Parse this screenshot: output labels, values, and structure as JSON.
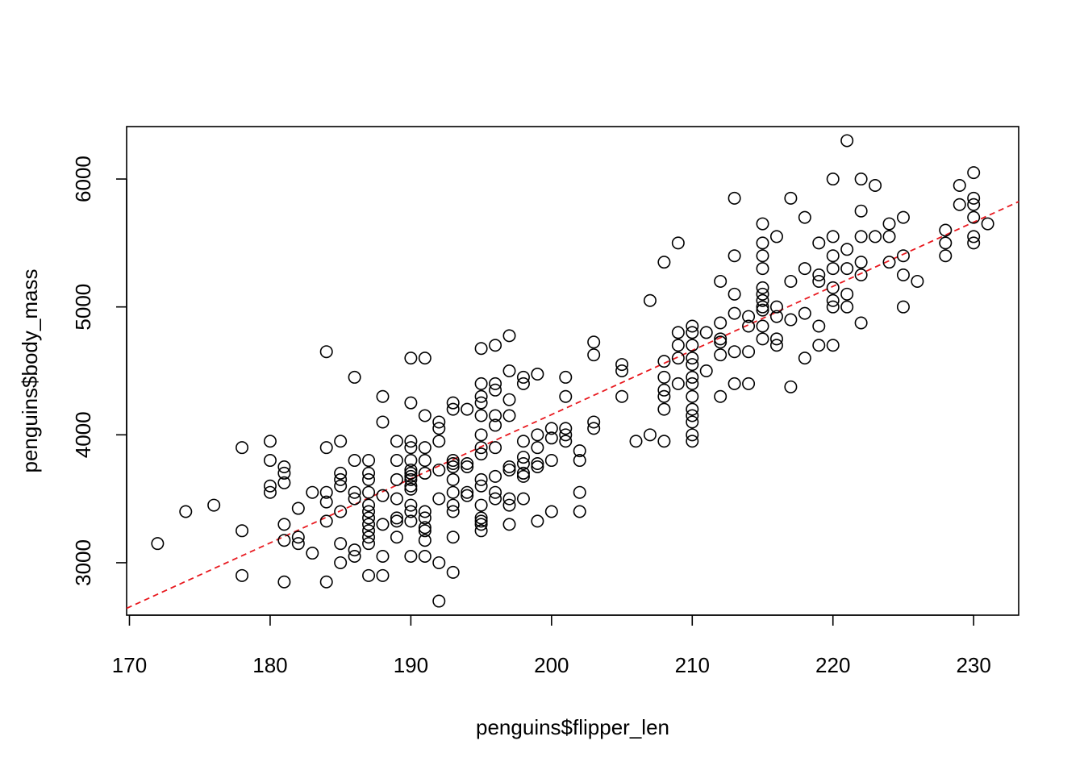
{
  "chart_data": {
    "type": "scatter",
    "xlabel": "penguins$flipper_len",
    "ylabel": "penguins$body_mass",
    "xlim": [
      169.8,
      233.2
    ],
    "ylim": [
      2590,
      6410
    ],
    "xticks": [
      170,
      180,
      190,
      200,
      210,
      220,
      230
    ],
    "yticks": [
      3000,
      4000,
      5000,
      6000
    ],
    "xtick_labels": [
      "170",
      "180",
      "190",
      "200",
      "210",
      "220",
      "230"
    ],
    "ytick_labels": [
      "3000",
      "4000",
      "5000",
      "6000"
    ],
    "marker": "open-circle",
    "point_color": "#000000",
    "fit_line": {
      "style": "dashed",
      "color": "#e8191f",
      "slope": 50.15,
      "intercept": -5872
    },
    "points": [
      [
        172,
        3150
      ],
      [
        174,
        3400
      ],
      [
        176,
        3450
      ],
      [
        178,
        3900
      ],
      [
        178,
        3250
      ],
      [
        178,
        2900
      ],
      [
        180,
        3950
      ],
      [
        180,
        3800
      ],
      [
        180,
        3600
      ],
      [
        180,
        3550
      ],
      [
        181,
        3750
      ],
      [
        181,
        3700
      ],
      [
        181,
        3625
      ],
      [
        181,
        3300
      ],
      [
        181,
        3175
      ],
      [
        181,
        2850
      ],
      [
        182,
        3425
      ],
      [
        182,
        3200
      ],
      [
        182,
        3150
      ],
      [
        183,
        3550
      ],
      [
        183,
        3075
      ],
      [
        184,
        4650
      ],
      [
        184,
        3900
      ],
      [
        184,
        3550
      ],
      [
        184,
        3475
      ],
      [
        184,
        3325
      ],
      [
        184,
        2850
      ],
      [
        185,
        3950
      ],
      [
        185,
        3700
      ],
      [
        185,
        3650
      ],
      [
        185,
        3600
      ],
      [
        185,
        3400
      ],
      [
        185,
        3150
      ],
      [
        185,
        3000
      ],
      [
        186,
        4450
      ],
      [
        186,
        3800
      ],
      [
        186,
        3550
      ],
      [
        186,
        3500
      ],
      [
        186,
        3100
      ],
      [
        186,
        3050
      ],
      [
        187,
        3800
      ],
      [
        187,
        3700
      ],
      [
        187,
        3650
      ],
      [
        187,
        3550
      ],
      [
        187,
        3450
      ],
      [
        187,
        3400
      ],
      [
        187,
        3350
      ],
      [
        187,
        3300
      ],
      [
        187,
        3250
      ],
      [
        187,
        3200
      ],
      [
        187,
        3150
      ],
      [
        187,
        2900
      ],
      [
        188,
        4300
      ],
      [
        188,
        4100
      ],
      [
        188,
        3525
      ],
      [
        188,
        3300
      ],
      [
        188,
        3050
      ],
      [
        188,
        2900
      ],
      [
        189,
        3950
      ],
      [
        189,
        3800
      ],
      [
        189,
        3650
      ],
      [
        189,
        3500
      ],
      [
        189,
        3350
      ],
      [
        189,
        3325
      ],
      [
        189,
        3200
      ],
      [
        190,
        4600
      ],
      [
        190,
        4250
      ],
      [
        190,
        3950
      ],
      [
        190,
        3900
      ],
      [
        190,
        3800
      ],
      [
        190,
        3725
      ],
      [
        190,
        3700
      ],
      [
        190,
        3675
      ],
      [
        190,
        3650
      ],
      [
        190,
        3600
      ],
      [
        190,
        3575
      ],
      [
        190,
        3450
      ],
      [
        190,
        3400
      ],
      [
        190,
        3325
      ],
      [
        190,
        3050
      ],
      [
        191,
        4600
      ],
      [
        191,
        4150
      ],
      [
        191,
        3900
      ],
      [
        191,
        3800
      ],
      [
        191,
        3700
      ],
      [
        191,
        3400
      ],
      [
        191,
        3350
      ],
      [
        191,
        3275
      ],
      [
        191,
        3250
      ],
      [
        191,
        3175
      ],
      [
        191,
        3050
      ],
      [
        192,
        4100
      ],
      [
        192,
        4050
      ],
      [
        192,
        3950
      ],
      [
        192,
        3725
      ],
      [
        192,
        3500
      ],
      [
        192,
        3000
      ],
      [
        192,
        2700
      ],
      [
        193,
        4250
      ],
      [
        193,
        4200
      ],
      [
        193,
        3800
      ],
      [
        193,
        3775
      ],
      [
        193,
        3750
      ],
      [
        193,
        3650
      ],
      [
        193,
        3550
      ],
      [
        193,
        3450
      ],
      [
        193,
        3400
      ],
      [
        193,
        3200
      ],
      [
        193,
        2925
      ],
      [
        194,
        4200
      ],
      [
        194,
        3775
      ],
      [
        194,
        3750
      ],
      [
        194,
        3550
      ],
      [
        194,
        3525
      ],
      [
        195,
        4675
      ],
      [
        195,
        4400
      ],
      [
        195,
        4300
      ],
      [
        195,
        4250
      ],
      [
        195,
        4150
      ],
      [
        195,
        4000
      ],
      [
        195,
        3900
      ],
      [
        195,
        3850
      ],
      [
        195,
        3650
      ],
      [
        195,
        3600
      ],
      [
        195,
        3450
      ],
      [
        195,
        3350
      ],
      [
        195,
        3325
      ],
      [
        195,
        3300
      ],
      [
        195,
        3250
      ],
      [
        196,
        4700
      ],
      [
        196,
        4400
      ],
      [
        196,
        4350
      ],
      [
        196,
        4150
      ],
      [
        196,
        4075
      ],
      [
        196,
        3900
      ],
      [
        196,
        3675
      ],
      [
        196,
        3550
      ],
      [
        196,
        3500
      ],
      [
        197,
        4775
      ],
      [
        197,
        4500
      ],
      [
        197,
        4275
      ],
      [
        197,
        4150
      ],
      [
        197,
        3750
      ],
      [
        197,
        3725
      ],
      [
        197,
        3500
      ],
      [
        197,
        3450
      ],
      [
        197,
        3300
      ],
      [
        198,
        4450
      ],
      [
        198,
        4400
      ],
      [
        198,
        3950
      ],
      [
        198,
        3825
      ],
      [
        198,
        3775
      ],
      [
        198,
        3700
      ],
      [
        198,
        3675
      ],
      [
        198,
        3500
      ],
      [
        199,
        4475
      ],
      [
        199,
        4000
      ],
      [
        199,
        3900
      ],
      [
        199,
        3775
      ],
      [
        199,
        3750
      ],
      [
        199,
        3325
      ],
      [
        200,
        4050
      ],
      [
        200,
        3975
      ],
      [
        200,
        3800
      ],
      [
        200,
        3400
      ],
      [
        201,
        4450
      ],
      [
        201,
        4300
      ],
      [
        201,
        4050
      ],
      [
        201,
        4000
      ],
      [
        201,
        3950
      ],
      [
        202,
        3875
      ],
      [
        202,
        3800
      ],
      [
        202,
        3550
      ],
      [
        202,
        3400
      ],
      [
        203,
        4725
      ],
      [
        203,
        4625
      ],
      [
        203,
        4100
      ],
      [
        203,
        4050
      ],
      [
        205,
        4550
      ],
      [
        205,
        4500
      ],
      [
        205,
        4300
      ],
      [
        206,
        3950
      ],
      [
        207,
        5050
      ],
      [
        207,
        4000
      ],
      [
        208,
        5350
      ],
      [
        208,
        4575
      ],
      [
        208,
        4450
      ],
      [
        208,
        4350
      ],
      [
        208,
        4300
      ],
      [
        208,
        4200
      ],
      [
        208,
        3950
      ],
      [
        209,
        5500
      ],
      [
        209,
        4800
      ],
      [
        209,
        4700
      ],
      [
        209,
        4600
      ],
      [
        209,
        4400
      ],
      [
        210,
        4850
      ],
      [
        210,
        4800
      ],
      [
        210,
        4700
      ],
      [
        210,
        4600
      ],
      [
        210,
        4550
      ],
      [
        210,
        4450
      ],
      [
        210,
        4400
      ],
      [
        210,
        4300
      ],
      [
        210,
        4200
      ],
      [
        210,
        4150
      ],
      [
        210,
        4100
      ],
      [
        210,
        4000
      ],
      [
        210,
        3950
      ],
      [
        211,
        4800
      ],
      [
        211,
        4500
      ],
      [
        212,
        5200
      ],
      [
        212,
        4875
      ],
      [
        212,
        4750
      ],
      [
        212,
        4725
      ],
      [
        212,
        4625
      ],
      [
        212,
        4300
      ],
      [
        213,
        5850
      ],
      [
        213,
        5400
      ],
      [
        213,
        5100
      ],
      [
        213,
        4950
      ],
      [
        213,
        4650
      ],
      [
        213,
        4400
      ],
      [
        214,
        4925
      ],
      [
        214,
        4850
      ],
      [
        214,
        4650
      ],
      [
        214,
        4400
      ],
      [
        215,
        5650
      ],
      [
        215,
        5500
      ],
      [
        215,
        5400
      ],
      [
        215,
        5300
      ],
      [
        215,
        5150
      ],
      [
        215,
        5100
      ],
      [
        215,
        5050
      ],
      [
        215,
        5000
      ],
      [
        215,
        4975
      ],
      [
        215,
        4850
      ],
      [
        215,
        4750
      ],
      [
        216,
        5550
      ],
      [
        216,
        5000
      ],
      [
        216,
        4925
      ],
      [
        216,
        4750
      ],
      [
        216,
        4700
      ],
      [
        217,
        5850
      ],
      [
        217,
        5200
      ],
      [
        217,
        4900
      ],
      [
        217,
        4375
      ],
      [
        218,
        5700
      ],
      [
        218,
        5300
      ],
      [
        218,
        4950
      ],
      [
        218,
        4600
      ],
      [
        219,
        5500
      ],
      [
        219,
        5250
      ],
      [
        219,
        5200
      ],
      [
        219,
        4850
      ],
      [
        219,
        4700
      ],
      [
        220,
        6000
      ],
      [
        220,
        5550
      ],
      [
        220,
        5400
      ],
      [
        220,
        5300
      ],
      [
        220,
        5150
      ],
      [
        220,
        5050
      ],
      [
        220,
        5000
      ],
      [
        220,
        4700
      ],
      [
        221,
        6300
      ],
      [
        221,
        5450
      ],
      [
        221,
        5300
      ],
      [
        221,
        5100
      ],
      [
        221,
        5000
      ],
      [
        222,
        6000
      ],
      [
        222,
        5750
      ],
      [
        222,
        5550
      ],
      [
        222,
        5350
      ],
      [
        222,
        5250
      ],
      [
        222,
        4875
      ],
      [
        223,
        5950
      ],
      [
        223,
        5550
      ],
      [
        224,
        5650
      ],
      [
        224,
        5550
      ],
      [
        224,
        5350
      ],
      [
        225,
        5700
      ],
      [
        225,
        5400
      ],
      [
        225,
        5250
      ],
      [
        225,
        5000
      ],
      [
        226,
        5200
      ],
      [
        228,
        5600
      ],
      [
        228,
        5500
      ],
      [
        228,
        5400
      ],
      [
        229,
        5950
      ],
      [
        229,
        5800
      ],
      [
        230,
        6050
      ],
      [
        230,
        5850
      ],
      [
        230,
        5800
      ],
      [
        230,
        5700
      ],
      [
        230,
        5550
      ],
      [
        230,
        5500
      ],
      [
        231,
        5650
      ]
    ]
  }
}
